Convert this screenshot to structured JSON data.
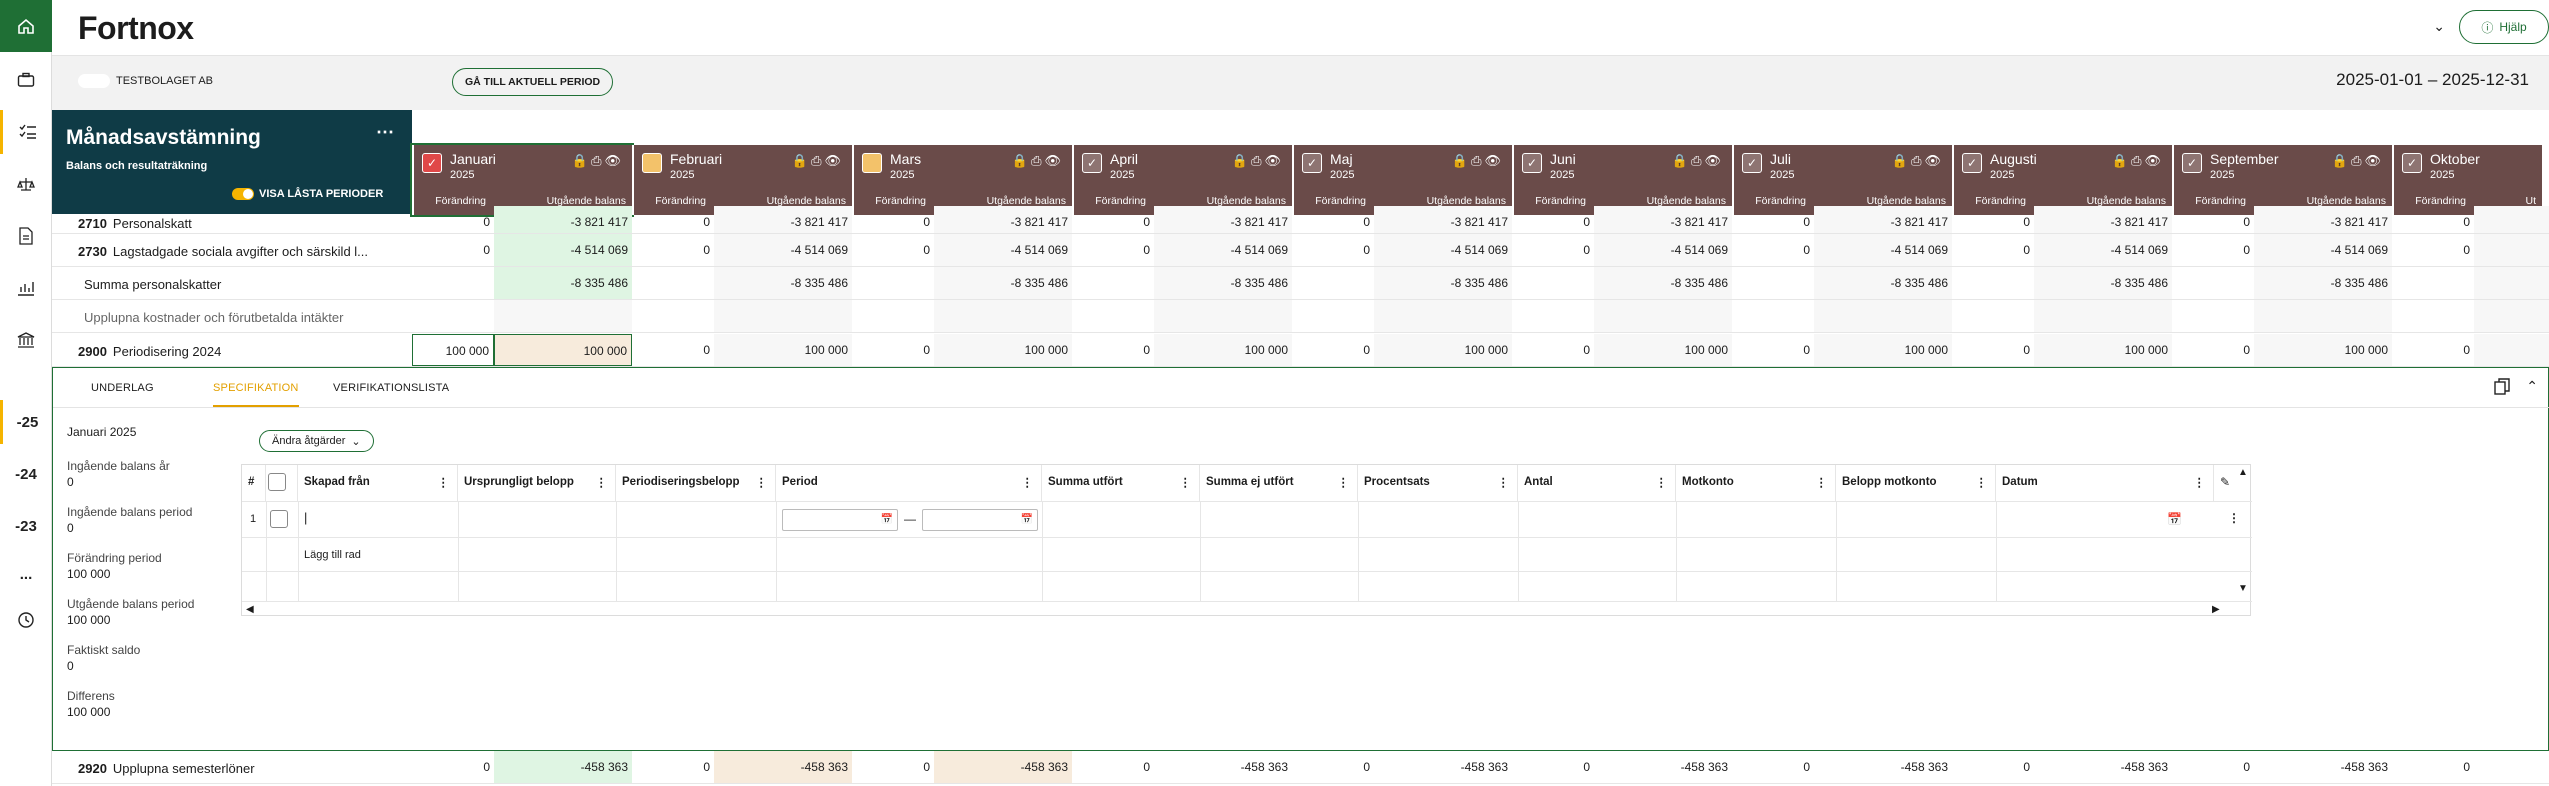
{
  "app": {
    "logo": "Fortnox",
    "help": "Hjälp"
  },
  "sidebar": {
    "items": [
      "-25",
      "-24",
      "-23",
      "..."
    ]
  },
  "subbar": {
    "company": "TESTBOLAGET AB",
    "goto_button": "GÅ TILL AKTUELL PERIOD",
    "daterange": "2025-01-01 – 2025-12-31"
  },
  "header": {
    "title": "Månadsavstämning",
    "subtitle": "Balans och resultaträkning",
    "toggle_label": "VISA LÅSTA PERIODER",
    "more": "⋯"
  },
  "months": [
    {
      "name": "Januari",
      "year": "2025",
      "col1": "Förändring",
      "col2": "Utgående balans",
      "status": "red"
    },
    {
      "name": "Februari",
      "year": "2025",
      "col1": "Förändring",
      "col2": "Utgående balans",
      "status": "yellow"
    },
    {
      "name": "Mars",
      "year": "2025",
      "col1": "Förändring",
      "col2": "Utgående balans",
      "status": "yellow"
    },
    {
      "name": "April",
      "year": "2025",
      "col1": "Förändring",
      "col2": "Utgående balans",
      "status": "grey"
    },
    {
      "name": "Maj",
      "year": "2025",
      "col1": "Förändring",
      "col2": "Utgående balans",
      "status": "grey"
    },
    {
      "name": "Juni",
      "year": "2025",
      "col1": "Förändring",
      "col2": "Utgående balans",
      "status": "grey"
    },
    {
      "name": "Juli",
      "year": "2025",
      "col1": "Förändring",
      "col2": "Utgående balans",
      "status": "grey"
    },
    {
      "name": "Augusti",
      "year": "2025",
      "col1": "Förändring",
      "col2": "Utgående balans",
      "status": "grey"
    },
    {
      "name": "September",
      "year": "2025",
      "col1": "Förändring",
      "col2": "Utgående balans",
      "status": "grey"
    },
    {
      "name": "Oktober",
      "year": "2025",
      "col1": "Förändring",
      "col2": "Ut",
      "status": "grey"
    }
  ],
  "rows": [
    {
      "acct": "2710",
      "name": "Personalskatt",
      "cells": [
        "0",
        "-3 821 417",
        "0",
        "-3 821 417",
        "0",
        "-3 821 417",
        "0",
        "-3 821 417",
        "0",
        "-3 821 417",
        "0",
        "-3 821 417",
        "0",
        "-3 821 417",
        "0",
        "-3 821 417",
        "0",
        "-3 821 417",
        "0",
        ""
      ]
    },
    {
      "acct": "2730",
      "name": "Lagstadgade sociala avgifter och särskild l...",
      "cells": [
        "0",
        "-4 514 069",
        "0",
        "-4 514 069",
        "0",
        "-4 514 069",
        "0",
        "-4 514 069",
        "0",
        "-4 514 069",
        "0",
        "-4 514 069",
        "0",
        "-4 514 069",
        "0",
        "-4 514 069",
        "0",
        "-4 514 069",
        "0",
        ""
      ]
    },
    {
      "acct": "",
      "name": "Summa personalskatter",
      "cells": [
        "",
        "-8 335 486",
        "",
        "-8 335 486",
        "",
        "-8 335 486",
        "",
        "-8 335 486",
        "",
        "-8 335 486",
        "",
        "-8 335 486",
        "",
        "-8 335 486",
        "",
        "-8 335 486",
        "",
        "-8 335 486",
        "",
        ""
      ]
    },
    {
      "acct": "",
      "name": "Upplupna kostnader och förutbetalda intäkter",
      "cells": [
        "",
        "",
        "",
        "",
        "",
        "",
        "",
        "",
        "",
        "",
        "",
        "",
        "",
        "",
        "",
        "",
        "",
        "",
        "",
        ""
      ]
    },
    {
      "acct": "2900",
      "name": "Periodisering 2024",
      "cells": [
        "100 000",
        "100 000",
        "0",
        "100 000",
        "0",
        "100 000",
        "0",
        "100 000",
        "0",
        "100 000",
        "0",
        "100 000",
        "0",
        "100 000",
        "0",
        "100 000",
        "0",
        "100 000",
        "0",
        ""
      ]
    }
  ],
  "bottom_row": {
    "acct": "2920",
    "name": "Upplupna semesterlöner",
    "cells": [
      "0",
      "-458 363",
      "0",
      "-458 363",
      "0",
      "-458 363",
      "0",
      "-458 363",
      "0",
      "-458 363",
      "0",
      "-458 363",
      "0",
      "-458 363",
      "0",
      "-458 363",
      "0",
      "-458 363",
      "0",
      ""
    ]
  },
  "panel": {
    "tabs": [
      "UNDERLAG",
      "SPECIFIKATION",
      "VERIFIKATIONSLISTA"
    ],
    "period": "Januari 2025",
    "actions": "Ändra åtgärder",
    "summary": [
      {
        "label": "Ingående balans år",
        "value": "0"
      },
      {
        "label": "Ingående balans period",
        "value": "0"
      },
      {
        "label": "Förändring period",
        "value": "100 000"
      },
      {
        "label": "Utgående balans period",
        "value": "100 000"
      },
      {
        "label": "Faktiskt saldo",
        "value": "0"
      },
      {
        "label": "Differens",
        "value": "100 000"
      }
    ],
    "grid": {
      "columns": [
        "#",
        "",
        "Skapad från",
        "Ursprungligt belopp",
        "Periodiseringsbelopp",
        "Period",
        "Summa utfört",
        "Summa ej utfört",
        "Procentsats",
        "Antal",
        "Motkonto",
        "Belopp motkonto",
        "Datum"
      ],
      "row_num": "1",
      "add_row": "Lägg till rad",
      "dash": "—"
    }
  },
  "colors": {
    "green": "#1f6f35",
    "month_header": "#6a4b49",
    "dark": "#0f3b46",
    "accent": "#e3a000",
    "cell_green": "#dff5e3",
    "cell_peach": "#f7ebdc"
  }
}
